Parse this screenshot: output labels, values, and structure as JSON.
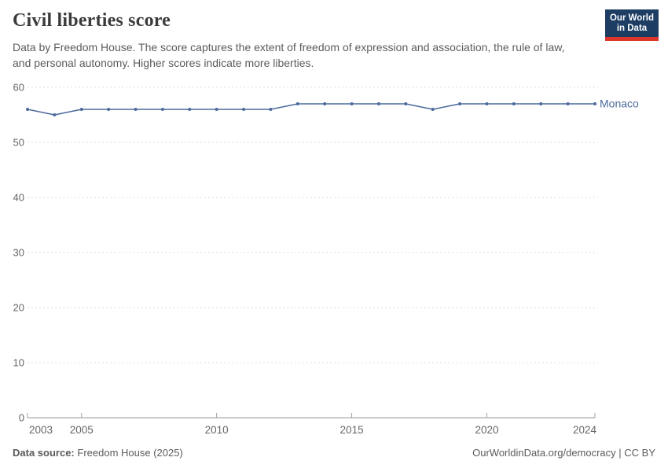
{
  "header": {
    "title": "Civil liberties score",
    "subtitle": "Data by Freedom House. The score captures the extent of freedom of expression and association, the rule of law, and personal autonomy. Higher scores indicate more liberties.",
    "logo": {
      "line1": "Our World",
      "line2": "in Data",
      "bg_color": "#1d3d63",
      "bar_color": "#dc352a"
    }
  },
  "chart_data": {
    "type": "line",
    "title": "Civil liberties score",
    "x": [
      2003,
      2004,
      2005,
      2006,
      2007,
      2008,
      2009,
      2010,
      2011,
      2012,
      2013,
      2014,
      2015,
      2016,
      2017,
      2018,
      2019,
      2020,
      2021,
      2022,
      2023,
      2024
    ],
    "series": [
      {
        "name": "Monaco",
        "values": [
          56,
          55,
          56,
          56,
          56,
          56,
          56,
          56,
          56,
          56,
          57,
          57,
          57,
          57,
          57,
          56,
          57,
          57,
          57,
          57,
          57,
          57
        ],
        "color": "#4c6a9c"
      }
    ],
    "xlim": [
      2003,
      2024
    ],
    "ylim": [
      0,
      60
    ],
    "xticks": [
      2003,
      2005,
      2010,
      2015,
      2020,
      2024
    ],
    "yticks": [
      0,
      10,
      20,
      30,
      40,
      50,
      60
    ],
    "grid": "horizontal-dashed",
    "legend_position": "end-of-line",
    "marker": "dot"
  },
  "footer": {
    "source_label": "Data source:",
    "source_value": "Freedom House (2025)",
    "credit": "OurWorldinData.org/democracy | CC BY"
  },
  "colors": {
    "line": "#4c6a9c",
    "grid": "#dcdcdc",
    "axis": "#949494",
    "tick": "#a0a0a0",
    "tick_label": "#666666",
    "title": "#3b3b3b",
    "text": "#5b5b5b"
  }
}
